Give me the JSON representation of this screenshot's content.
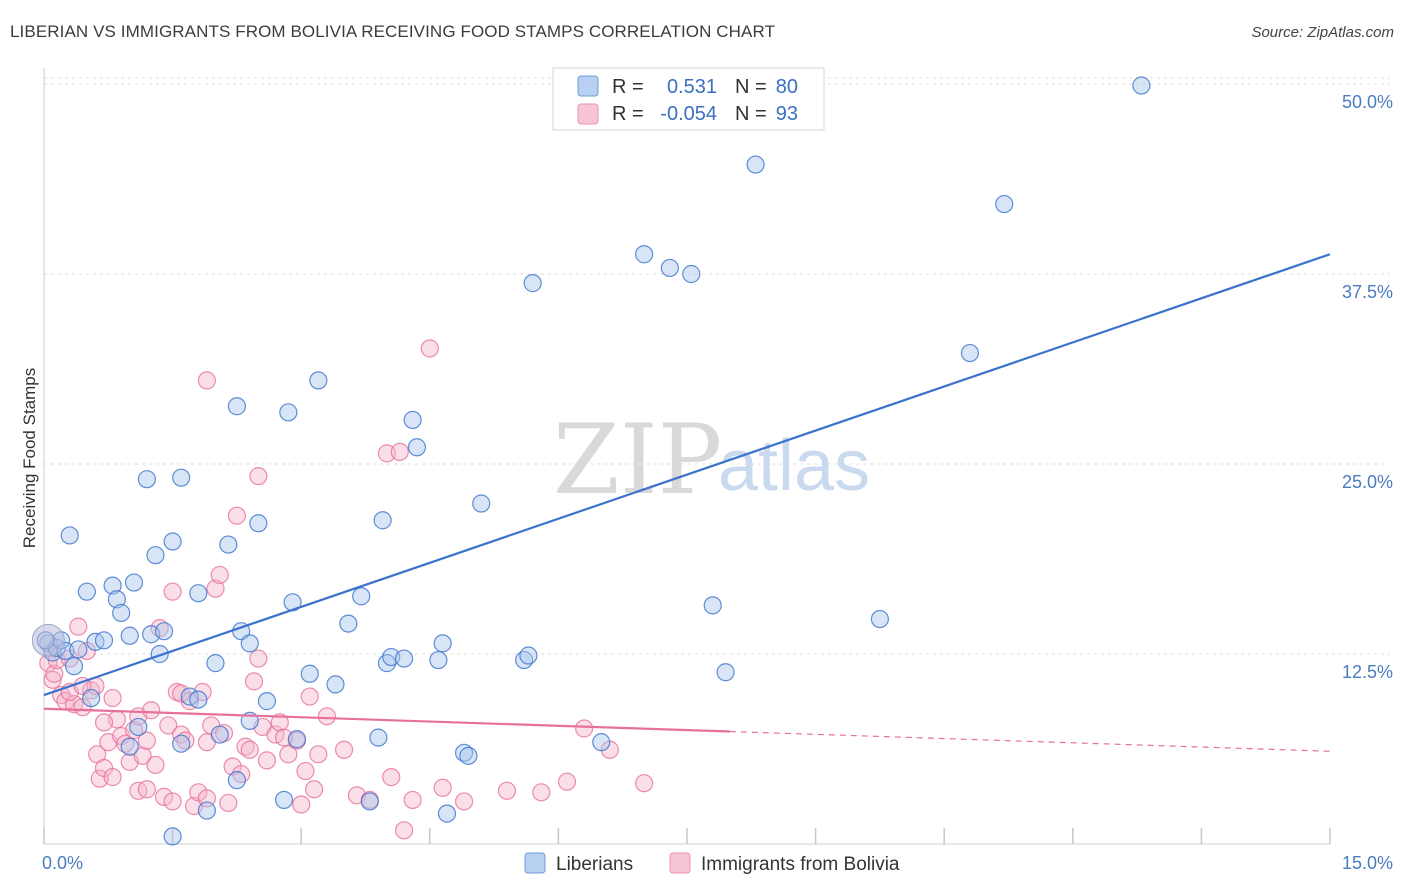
{
  "header": {
    "title": "LIBERIAN VS IMMIGRANTS FROM BOLIVIA RECEIVING FOOD STAMPS CORRELATION CHART",
    "source": "Source: ZipAtlas.com"
  },
  "legend_box": {
    "rows": [
      {
        "r_label": "R =",
        "r_value": "0.531",
        "n_label": "N =",
        "n_value": "80"
      },
      {
        "r_label": "R =",
        "r_value": "-0.054",
        "n_label": "N =",
        "n_value": "93"
      }
    ]
  },
  "watermark": {
    "zip": "ZIP",
    "atlas": "atlas"
  },
  "colors": {
    "blue": "#3a72cc",
    "blue_fill": "#a9c6ee",
    "pink": "#e8709c",
    "pink_fill": "#f4b6cb",
    "grid": "#dcdcdc"
  },
  "chart_data": {
    "type": "scatter",
    "ylabel": "Receiving Food Stamps",
    "xlim": [
      0,
      15
    ],
    "ylim": [
      0,
      50
    ],
    "x_tick_labels": [
      "0.0%",
      "15.0%"
    ],
    "y_ticks": [
      12.5,
      25.0,
      37.5,
      50.0
    ],
    "y_tick_labels": [
      "12.5%",
      "25.0%",
      "37.5%",
      "50.0%"
    ],
    "grid": true,
    "legend_position": "bottom",
    "series": [
      {
        "name": "Liberians",
        "color": "#3a72cc",
        "trend": {
          "x0": 0.0,
          "y0": 9.8,
          "x1": 15.0,
          "y1": 38.8
        },
        "points": [
          [
            0.05,
            13.2
          ],
          [
            0.1,
            12.6
          ],
          [
            0.15,
            12.9
          ],
          [
            0.2,
            13.4
          ],
          [
            0.25,
            12.7
          ],
          [
            0.3,
            20.3
          ],
          [
            0.35,
            11.7
          ],
          [
            0.4,
            12.8
          ],
          [
            0.5,
            16.6
          ],
          [
            0.55,
            9.6
          ],
          [
            0.6,
            13.3
          ],
          [
            0.7,
            13.4
          ],
          [
            0.8,
            17.0
          ],
          [
            0.85,
            16.1
          ],
          [
            0.9,
            15.2
          ],
          [
            1.0,
            6.4
          ],
          [
            1.0,
            13.7
          ],
          [
            1.05,
            17.2
          ],
          [
            1.1,
            7.7
          ],
          [
            1.2,
            24.0
          ],
          [
            1.25,
            13.8
          ],
          [
            1.3,
            19.0
          ],
          [
            1.35,
            12.5
          ],
          [
            1.4,
            14.0
          ],
          [
            1.5,
            0.5
          ],
          [
            1.5,
            19.9
          ],
          [
            1.6,
            6.6
          ],
          [
            1.6,
            24.1
          ],
          [
            1.7,
            9.7
          ],
          [
            1.8,
            9.5
          ],
          [
            1.8,
            16.5
          ],
          [
            1.9,
            2.2
          ],
          [
            2.0,
            11.9
          ],
          [
            2.05,
            7.2
          ],
          [
            2.15,
            19.7
          ],
          [
            2.25,
            4.2
          ],
          [
            2.25,
            28.8
          ],
          [
            2.3,
            14.0
          ],
          [
            2.4,
            8.1
          ],
          [
            2.4,
            13.2
          ],
          [
            2.5,
            21.1
          ],
          [
            2.6,
            9.4
          ],
          [
            2.8,
            2.9
          ],
          [
            2.85,
            28.4
          ],
          [
            2.9,
            15.9
          ],
          [
            2.95,
            6.9
          ],
          [
            3.1,
            11.2
          ],
          [
            3.2,
            30.5
          ],
          [
            3.4,
            10.5
          ],
          [
            3.55,
            14.5
          ],
          [
            3.7,
            16.3
          ],
          [
            3.8,
            2.8
          ],
          [
            3.9,
            7.0
          ],
          [
            3.95,
            21.3
          ],
          [
            4.0,
            11.9
          ],
          [
            4.05,
            12.3
          ],
          [
            4.2,
            12.2
          ],
          [
            4.3,
            27.9
          ],
          [
            4.35,
            26.1
          ],
          [
            4.6,
            12.1
          ],
          [
            4.65,
            13.2
          ],
          [
            4.7,
            2.0
          ],
          [
            4.9,
            6.0
          ],
          [
            4.95,
            5.8
          ],
          [
            5.1,
            22.4
          ],
          [
            5.6,
            12.1
          ],
          [
            5.65,
            12.4
          ],
          [
            5.7,
            36.9
          ],
          [
            6.5,
            6.7
          ],
          [
            7.0,
            38.8
          ],
          [
            7.3,
            37.9
          ],
          [
            7.55,
            37.5
          ],
          [
            7.8,
            15.7
          ],
          [
            7.95,
            11.3
          ],
          [
            8.3,
            44.7
          ],
          [
            9.75,
            14.8
          ],
          [
            10.8,
            32.3
          ],
          [
            11.2,
            42.1
          ],
          [
            12.8,
            49.9
          ],
          [
            0.02,
            13.4
          ]
        ]
      },
      {
        "name": "Immigrants from Bolivia",
        "color": "#e8709c",
        "trend": {
          "x0": 0.0,
          "y0": 8.9,
          "x1": 8.0,
          "y1": 7.4
        },
        "trend_dashed": {
          "x0": 8.0,
          "y0": 7.4,
          "x1": 15.0,
          "y1": 6.1
        },
        "points": [
          [
            0.05,
            11.9
          ],
          [
            0.1,
            10.8
          ],
          [
            0.12,
            11.2
          ],
          [
            0.15,
            12.1
          ],
          [
            0.2,
            9.8
          ],
          [
            0.25,
            9.4
          ],
          [
            0.3,
            12.2
          ],
          [
            0.35,
            9.2
          ],
          [
            0.4,
            14.3
          ],
          [
            0.45,
            9.0
          ],
          [
            0.5,
            12.7
          ],
          [
            0.55,
            10.1
          ],
          [
            0.6,
            10.4
          ],
          [
            0.62,
            5.9
          ],
          [
            0.65,
            4.3
          ],
          [
            0.7,
            5.0
          ],
          [
            0.75,
            6.7
          ],
          [
            0.8,
            4.4
          ],
          [
            0.8,
            9.6
          ],
          [
            0.85,
            8.2
          ],
          [
            0.9,
            7.1
          ],
          [
            0.95,
            6.6
          ],
          [
            1.0,
            5.4
          ],
          [
            1.05,
            7.5
          ],
          [
            1.1,
            8.4
          ],
          [
            1.1,
            3.5
          ],
          [
            1.15,
            5.8
          ],
          [
            1.2,
            3.6
          ],
          [
            1.25,
            8.8
          ],
          [
            1.3,
            5.2
          ],
          [
            1.35,
            14.2
          ],
          [
            1.4,
            3.1
          ],
          [
            1.45,
            7.8
          ],
          [
            1.5,
            2.8
          ],
          [
            1.5,
            16.6
          ],
          [
            1.55,
            10.0
          ],
          [
            1.6,
            7.2
          ],
          [
            1.65,
            6.8
          ],
          [
            1.7,
            9.4
          ],
          [
            1.75,
            2.5
          ],
          [
            1.8,
            3.4
          ],
          [
            1.85,
            10.0
          ],
          [
            1.9,
            30.5
          ],
          [
            1.9,
            6.7
          ],
          [
            1.95,
            7.8
          ],
          [
            2.0,
            16.8
          ],
          [
            2.05,
            17.7
          ],
          [
            2.1,
            7.3
          ],
          [
            2.15,
            2.7
          ],
          [
            2.2,
            5.1
          ],
          [
            2.25,
            21.6
          ],
          [
            2.3,
            4.6
          ],
          [
            2.35,
            6.4
          ],
          [
            2.4,
            6.2
          ],
          [
            2.45,
            10.7
          ],
          [
            2.5,
            24.2
          ],
          [
            2.5,
            12.2
          ],
          [
            2.55,
            7.7
          ],
          [
            2.6,
            5.5
          ],
          [
            2.7,
            7.2
          ],
          [
            2.75,
            8.0
          ],
          [
            2.85,
            5.9
          ],
          [
            2.95,
            6.8
          ],
          [
            3.0,
            2.6
          ],
          [
            3.05,
            4.8
          ],
          [
            3.1,
            9.7
          ],
          [
            3.15,
            3.6
          ],
          [
            3.2,
            5.9
          ],
          [
            3.3,
            8.4
          ],
          [
            3.5,
            6.2
          ],
          [
            3.65,
            3.2
          ],
          [
            3.8,
            2.9
          ],
          [
            4.0,
            25.7
          ],
          [
            4.05,
            4.4
          ],
          [
            4.15,
            25.8
          ],
          [
            4.2,
            0.9
          ],
          [
            4.3,
            2.9
          ],
          [
            4.5,
            32.6
          ],
          [
            4.65,
            3.7
          ],
          [
            4.9,
            2.8
          ],
          [
            5.4,
            3.5
          ],
          [
            5.8,
            3.4
          ],
          [
            6.1,
            4.1
          ],
          [
            6.3,
            7.6
          ],
          [
            6.6,
            6.2
          ],
          [
            7.0,
            4.0
          ],
          [
            0.3,
            10.0
          ],
          [
            0.45,
            10.4
          ],
          [
            1.2,
            6.8
          ],
          [
            1.9,
            3.0
          ],
          [
            2.8,
            7.0
          ],
          [
            0.7,
            8.0
          ],
          [
            1.6,
            9.9
          ]
        ]
      }
    ]
  }
}
